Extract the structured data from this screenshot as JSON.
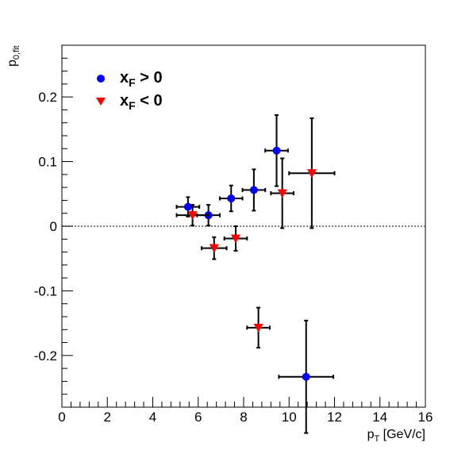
{
  "chart_data": {
    "type": "scatter",
    "xlabel": {
      "main": "p",
      "sub": "T",
      "rest": " [GeV/c]"
    },
    "ylabel": {
      "main": "p",
      "sub": "0,fit"
    },
    "xlim": [
      0,
      16
    ],
    "ylim": [
      -0.28,
      0.28
    ],
    "x_ticks": [
      {
        "value": 0,
        "label": "0"
      },
      {
        "value": 2,
        "label": "2"
      },
      {
        "value": 4,
        "label": "4"
      },
      {
        "value": 6,
        "label": "6"
      },
      {
        "value": 8,
        "label": "8"
      },
      {
        "value": 10,
        "label": "10"
      },
      {
        "value": 12,
        "label": "12"
      },
      {
        "value": 14,
        "label": "14"
      },
      {
        "value": 16,
        "label": "16"
      }
    ],
    "y_ticks": [
      {
        "value": -0.2,
        "label": "-0.2"
      },
      {
        "value": -0.1,
        "label": "-0.1"
      },
      {
        "value": 0,
        "label": "0"
      },
      {
        "value": 0.1,
        "label": "0.1"
      },
      {
        "value": 0.2,
        "label": "0.2"
      }
    ],
    "reference_line": {
      "y": 0,
      "style": "dotted",
      "color": "#555555"
    },
    "legend_position": "top-left",
    "series": [
      {
        "name": {
          "main": "x",
          "sub": "F",
          "rest": " > 0"
        },
        "marker": "circle",
        "color": "#0000ff",
        "points": [
          {
            "x": 5.55,
            "y": 0.03,
            "xerr": 0.5,
            "yerr": 0.015
          },
          {
            "x": 6.45,
            "y": 0.017,
            "xerr": 0.5,
            "yerr": 0.016
          },
          {
            "x": 7.45,
            "y": 0.043,
            "xerr": 0.5,
            "yerr": 0.02
          },
          {
            "x": 8.45,
            "y": 0.056,
            "xerr": 0.5,
            "yerr": 0.032
          },
          {
            "x": 9.45,
            "y": 0.117,
            "xerr": 0.5,
            "yerr": 0.055
          },
          {
            "x": 10.75,
            "y": -0.233,
            "xerr": 1.2,
            "yerr": 0.087
          }
        ]
      },
      {
        "name": {
          "main": "x",
          "sub": "F",
          "rest": " < 0"
        },
        "marker": "triangle-down",
        "color": "#ff0000",
        "points": [
          {
            "x": 5.75,
            "y": 0.017,
            "xerr": 0.7,
            "yerr": 0.016
          },
          {
            "x": 6.7,
            "y": -0.034,
            "xerr": 0.55,
            "yerr": 0.017
          },
          {
            "x": 7.65,
            "y": -0.019,
            "xerr": 0.5,
            "yerr": 0.019
          },
          {
            "x": 8.65,
            "y": -0.157,
            "xerr": 0.5,
            "yerr": 0.031
          },
          {
            "x": 9.7,
            "y": 0.051,
            "xerr": 0.5,
            "yerr": 0.054
          },
          {
            "x": 11.0,
            "y": 0.082,
            "xerr": 1.0,
            "yerr": 0.085
          }
        ]
      }
    ]
  }
}
